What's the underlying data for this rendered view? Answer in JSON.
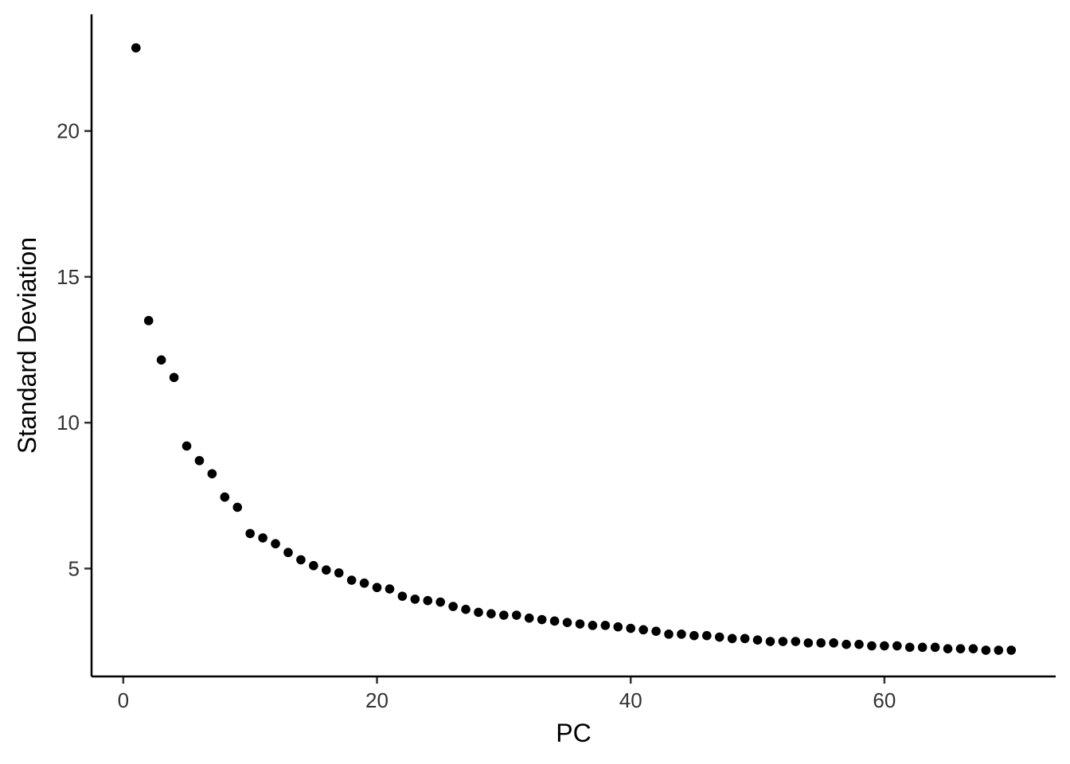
{
  "chart_data": {
    "type": "scatter",
    "xlabel": "PC",
    "ylabel": "Standard Deviation",
    "xlim": [
      -2.5,
      73.5
    ],
    "ylim": [
      1.3,
      24.0
    ],
    "x_ticks": [
      0,
      20,
      40,
      60
    ],
    "y_ticks": [
      5,
      10,
      15,
      20
    ],
    "grid": false,
    "point_color": "#000000",
    "series": [
      {
        "x": [
          1,
          2,
          3,
          4,
          5,
          6,
          7,
          8,
          9,
          10,
          11,
          12,
          13,
          14,
          15,
          16,
          17,
          18,
          19,
          20,
          21,
          22,
          23,
          24,
          25,
          26,
          27,
          28,
          29,
          30,
          31,
          32,
          33,
          34,
          35,
          36,
          37,
          38,
          39,
          40,
          41,
          42,
          43,
          44,
          45,
          46,
          47,
          48,
          49,
          50,
          51,
          52,
          53,
          54,
          55,
          56,
          57,
          58,
          59,
          60,
          61,
          62,
          63,
          64,
          65,
          66,
          67,
          68,
          69,
          70
        ],
        "y": [
          22.85,
          13.5,
          12.15,
          11.55,
          9.2,
          8.7,
          8.25,
          7.45,
          7.1,
          6.2,
          6.05,
          5.85,
          5.55,
          5.3,
          5.1,
          4.95,
          4.85,
          4.6,
          4.5,
          4.35,
          4.3,
          4.05,
          3.95,
          3.9,
          3.85,
          3.7,
          3.6,
          3.5,
          3.45,
          3.4,
          3.4,
          3.3,
          3.25,
          3.2,
          3.15,
          3.1,
          3.05,
          3.05,
          3.0,
          2.95,
          2.9,
          2.85,
          2.75,
          2.75,
          2.7,
          2.7,
          2.65,
          2.6,
          2.6,
          2.55,
          2.5,
          2.5,
          2.5,
          2.45,
          2.45,
          2.45,
          2.4,
          2.4,
          2.35,
          2.35,
          2.35,
          2.3,
          2.3,
          2.3,
          2.25,
          2.25,
          2.25,
          2.2,
          2.2,
          2.2
        ]
      }
    ]
  }
}
